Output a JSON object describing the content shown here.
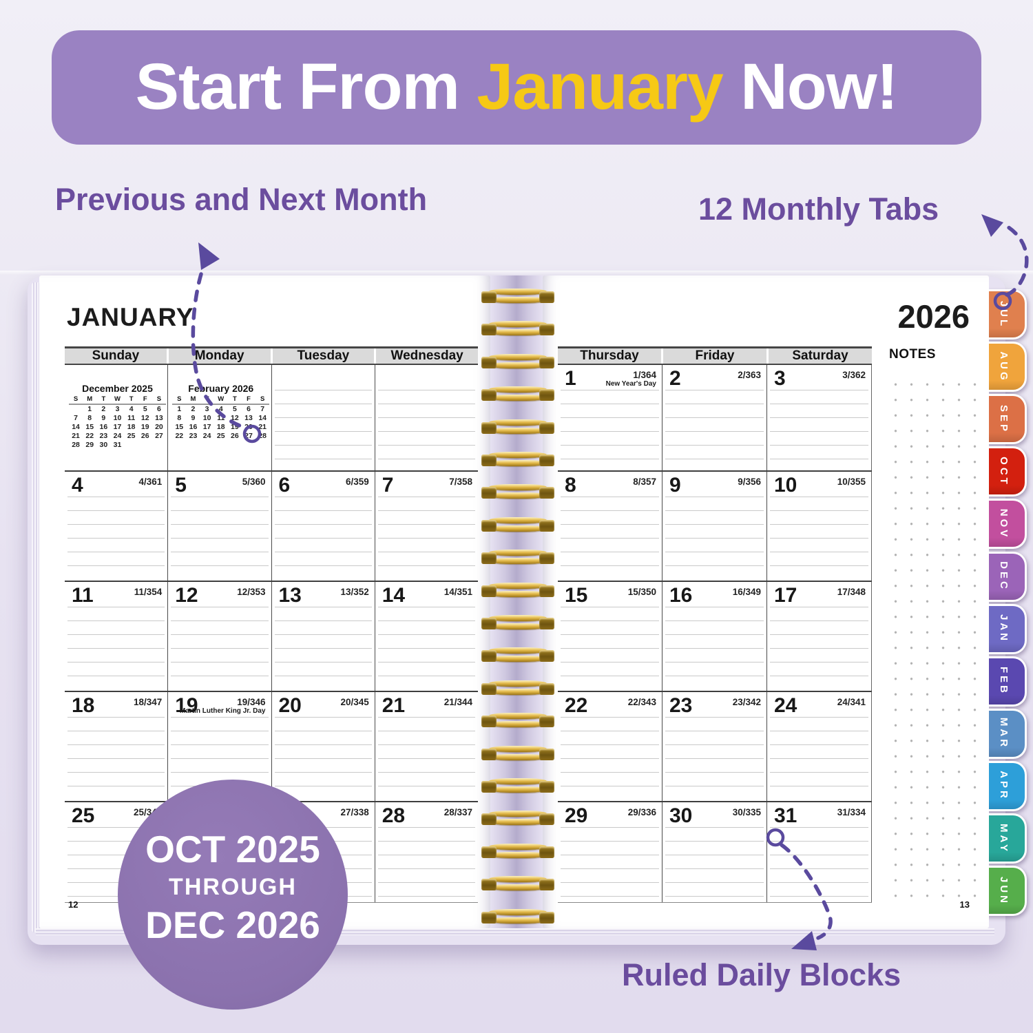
{
  "banner": {
    "part1": "Start From ",
    "highlight": "January",
    "part2": " Now!",
    "bg_color": "#9a82c2",
    "highlight_color": "#f6c915"
  },
  "callouts": {
    "prev_next": "Previous and Next Month",
    "monthly_tabs": "12 Monthly Tabs",
    "ruled_blocks": "Ruled Daily Blocks",
    "text_color": "#6b4d9e",
    "arrow_color": "#5a4a9e"
  },
  "badge": {
    "line1": "OCT 2025",
    "line2": "THROUGH",
    "line3": "DEC 2026",
    "bg_color": "#8b72ae"
  },
  "left_page": {
    "month_title": "JANUARY",
    "page_number": "12",
    "day_headers": [
      "Sunday",
      "Monday",
      "Tuesday",
      "Wednesday"
    ],
    "mini_calendars": [
      {
        "title": "December 2025",
        "day_letters": [
          "S",
          "M",
          "T",
          "W",
          "T",
          "F",
          "S"
        ],
        "weeks": [
          [
            "",
            "1",
            "2",
            "3",
            "4",
            "5",
            "6"
          ],
          [
            "7",
            "8",
            "9",
            "10",
            "11",
            "12",
            "13"
          ],
          [
            "14",
            "15",
            "16",
            "17",
            "18",
            "19",
            "20"
          ],
          [
            "21",
            "22",
            "23",
            "24",
            "25",
            "26",
            "27"
          ],
          [
            "28",
            "29",
            "30",
            "31",
            "",
            "",
            ""
          ]
        ]
      },
      {
        "title": "February 2026",
        "day_letters": [
          "S",
          "M",
          "T",
          "W",
          "T",
          "F",
          "S"
        ],
        "circled_day": "27",
        "weeks": [
          [
            "1",
            "2",
            "3",
            "4",
            "5",
            "6",
            "7"
          ],
          [
            "8",
            "9",
            "10",
            "11",
            "12",
            "13",
            "14"
          ],
          [
            "15",
            "16",
            "17",
            "18",
            "19",
            "20",
            "21"
          ],
          [
            "22",
            "23",
            "24",
            "25",
            "26",
            "27",
            "28"
          ]
        ]
      }
    ],
    "weeks": [
      [
        {
          "day": "4",
          "doy": "4/361"
        },
        {
          "day": "5",
          "doy": "5/360"
        },
        {
          "day": "6",
          "doy": "6/359"
        },
        {
          "day": "7",
          "doy": "7/358"
        }
      ],
      [
        {
          "day": "11",
          "doy": "11/354"
        },
        {
          "day": "12",
          "doy": "12/353"
        },
        {
          "day": "13",
          "doy": "13/352"
        },
        {
          "day": "14",
          "doy": "14/351"
        }
      ],
      [
        {
          "day": "18",
          "doy": "18/347"
        },
        {
          "day": "19",
          "doy": "19/346",
          "holiday": "Martin Luther King Jr. Day"
        },
        {
          "day": "20",
          "doy": "20/345"
        },
        {
          "day": "21",
          "doy": "21/344"
        }
      ],
      [
        {
          "day": "25",
          "doy": "25/340"
        },
        {
          "day": "",
          "doy": ""
        },
        {
          "day": "27",
          "doy": "27/338"
        },
        {
          "day": "28",
          "doy": "28/337"
        }
      ]
    ]
  },
  "right_page": {
    "year": "2026",
    "page_number": "13",
    "notes_label": "NOTES",
    "day_headers": [
      "Thursday",
      "Friday",
      "Saturday"
    ],
    "weeks": [
      [
        {
          "day": "1",
          "doy": "1/364",
          "holiday": "New Year's Day"
        },
        {
          "day": "2",
          "doy": "2/363"
        },
        {
          "day": "3",
          "doy": "3/362"
        }
      ],
      [
        {
          "day": "8",
          "doy": "8/357"
        },
        {
          "day": "9",
          "doy": "9/356"
        },
        {
          "day": "10",
          "doy": "10/355"
        }
      ],
      [
        {
          "day": "15",
          "doy": "15/350"
        },
        {
          "day": "16",
          "doy": "16/349"
        },
        {
          "day": "17",
          "doy": "17/348"
        }
      ],
      [
        {
          "day": "22",
          "doy": "22/343"
        },
        {
          "day": "23",
          "doy": "23/342"
        },
        {
          "day": "24",
          "doy": "24/341"
        }
      ],
      [
        {
          "day": "29",
          "doy": "29/336"
        },
        {
          "day": "30",
          "doy": "30/335"
        },
        {
          "day": "31",
          "doy": "31/334"
        }
      ]
    ]
  },
  "tabs": [
    {
      "label": "JUL",
      "color": "#e0804e"
    },
    {
      "label": "AUG",
      "color": "#f0a43c"
    },
    {
      "label": "SEP",
      "color": "#dc7046"
    },
    {
      "label": "OCT",
      "color": "#d3200f"
    },
    {
      "label": "NOV",
      "color": "#c24f9e"
    },
    {
      "label": "DEC",
      "color": "#9b64b8"
    },
    {
      "label": "JAN",
      "color": "#6e6ac4"
    },
    {
      "label": "FEB",
      "color": "#5a48b0"
    },
    {
      "label": "MAR",
      "color": "#5b8fc5"
    },
    {
      "label": "APR",
      "color": "#2d9fd9"
    },
    {
      "label": "MAY",
      "color": "#28a79a"
    },
    {
      "label": "JUN",
      "color": "#56ae4b"
    }
  ],
  "spiral_color": "#d9ab3e"
}
